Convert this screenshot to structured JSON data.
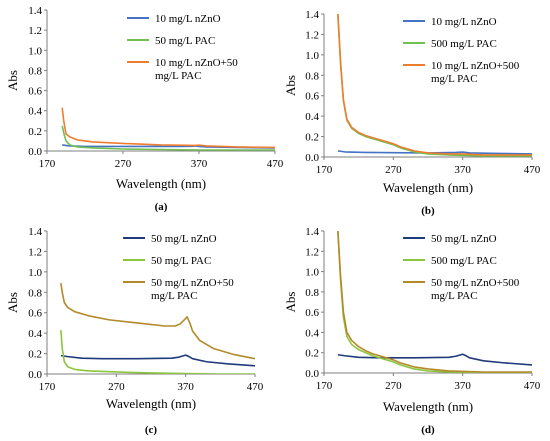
{
  "chart_data": [
    {
      "type": "line",
      "panel_label": "(a)",
      "xlabel": "Wavelength (nm)",
      "ylabel": "Abs",
      "xlim": [
        170,
        470
      ],
      "ylim": [
        0,
        1.4
      ],
      "xticks": [
        170,
        270,
        370,
        470
      ],
      "yticks": [
        0.0,
        0.2,
        0.4,
        0.6,
        0.8,
        1.0,
        1.2,
        1.4
      ],
      "legend_position": "top-right",
      "series": [
        {
          "name": "10 mg/L nZnO",
          "color": "#4472c4",
          "x": [
            190,
            195,
            200,
            220,
            260,
            300,
            340,
            360,
            365,
            370,
            380,
            420,
            470
          ],
          "y": [
            0.06,
            0.055,
            0.05,
            0.045,
            0.045,
            0.045,
            0.045,
            0.046,
            0.05,
            0.045,
            0.04,
            0.035,
            0.03
          ]
        },
        {
          "name": "50 mg/L PAC",
          "color": "#70c050",
          "x": [
            190,
            192,
            195,
            200,
            210,
            230,
            270,
            320,
            370,
            420,
            470
          ],
          "y": [
            0.25,
            0.18,
            0.1,
            0.06,
            0.04,
            0.03,
            0.02,
            0.015,
            0.01,
            0.01,
            0.01
          ]
        },
        {
          "name": "10 mg/L nZnO+50 mg/L PAC",
          "color": "#ed7d31",
          "x": [
            190,
            192,
            195,
            200,
            210,
            230,
            270,
            320,
            365,
            370,
            380,
            420,
            470
          ],
          "y": [
            0.43,
            0.3,
            0.17,
            0.14,
            0.11,
            0.09,
            0.075,
            0.06,
            0.055,
            0.058,
            0.05,
            0.04,
            0.035
          ]
        }
      ]
    },
    {
      "type": "line",
      "panel_label": "(b)",
      "xlabel": "Wavelength (nm)",
      "ylabel": "Abs",
      "xlim": [
        170,
        470
      ],
      "ylim": [
        0,
        1.4
      ],
      "xticks": [
        170,
        270,
        370,
        470
      ],
      "yticks": [
        0.0,
        0.2,
        0.4,
        0.6,
        0.8,
        1.0,
        1.2,
        1.4
      ],
      "legend_position": "top-right",
      "series": [
        {
          "name": "10 mg/L nZnO",
          "color": "#4472c4",
          "x": [
            190,
            200,
            230,
            270,
            320,
            360,
            370,
            380,
            420,
            470
          ],
          "y": [
            0.06,
            0.05,
            0.045,
            0.042,
            0.04,
            0.045,
            0.048,
            0.04,
            0.035,
            0.03
          ]
        },
        {
          "name": "500 mg/L PAC",
          "color": "#70c050",
          "x": [
            190,
            194,
            198,
            203,
            210,
            220,
            230,
            240,
            250,
            260,
            270,
            280,
            300,
            320,
            350,
            400,
            470
          ],
          "y": [
            1.4,
            0.9,
            0.55,
            0.36,
            0.28,
            0.23,
            0.2,
            0.18,
            0.16,
            0.14,
            0.12,
            0.09,
            0.05,
            0.03,
            0.02,
            0.01,
            0.01
          ]
        },
        {
          "name": "10 mg/L nZnO+500 mg/L PAC",
          "color": "#ed7d31",
          "x": [
            190,
            194,
            198,
            203,
            210,
            220,
            230,
            240,
            250,
            260,
            270,
            280,
            300,
            320,
            350,
            370,
            400,
            470
          ],
          "y": [
            1.4,
            0.92,
            0.56,
            0.37,
            0.29,
            0.24,
            0.21,
            0.19,
            0.17,
            0.15,
            0.13,
            0.1,
            0.06,
            0.04,
            0.03,
            0.03,
            0.02,
            0.02
          ]
        }
      ]
    },
    {
      "type": "line",
      "panel_label": "(c)",
      "xlabel": "Wavelength (nm)",
      "ylabel": "Abs",
      "xlim": [
        170,
        470
      ],
      "ylim": [
        0,
        1.4
      ],
      "xticks": [
        170,
        270,
        370,
        470
      ],
      "yticks": [
        0.0,
        0.2,
        0.4,
        0.6,
        0.8,
        1.0,
        1.2,
        1.4
      ],
      "legend_position": "top-right",
      "series": [
        {
          "name": "50 mg/L nZnO",
          "color": "#1f3a7a",
          "x": [
            190,
            200,
            220,
            250,
            300,
            350,
            360,
            365,
            370,
            375,
            380,
            400,
            430,
            470
          ],
          "y": [
            0.18,
            0.17,
            0.155,
            0.15,
            0.15,
            0.155,
            0.165,
            0.175,
            0.185,
            0.17,
            0.15,
            0.12,
            0.1,
            0.08
          ]
        },
        {
          "name": "50 mg/L PAC",
          "color": "#8cc63f",
          "x": [
            190,
            192,
            195,
            200,
            210,
            230,
            270,
            320,
            370,
            420,
            470
          ],
          "y": [
            0.43,
            0.25,
            0.12,
            0.07,
            0.045,
            0.03,
            0.02,
            0.01,
            0.005,
            0.0,
            0.0
          ]
        },
        {
          "name": "50 mg/L nZnO+50 mg/L PAC",
          "color": "#b38a2a",
          "x": [
            190,
            192,
            195,
            200,
            210,
            230,
            260,
            300,
            340,
            355,
            362,
            368,
            372,
            376,
            380,
            390,
            410,
            440,
            470
          ],
          "y": [
            0.89,
            0.8,
            0.7,
            0.65,
            0.61,
            0.57,
            0.53,
            0.5,
            0.47,
            0.47,
            0.49,
            0.53,
            0.56,
            0.5,
            0.42,
            0.33,
            0.25,
            0.19,
            0.15
          ]
        }
      ]
    },
    {
      "type": "line",
      "panel_label": "(d)",
      "xlabel": "Wavelength (nm)",
      "ylabel": "Abs",
      "xlim": [
        170,
        470
      ],
      "ylim": [
        0,
        1.4
      ],
      "xticks": [
        170,
        270,
        370,
        470
      ],
      "yticks": [
        0.0,
        0.2,
        0.4,
        0.6,
        0.8,
        1.0,
        1.2,
        1.4
      ],
      "legend_position": "top-right",
      "series": [
        {
          "name": "50 mg/L nZnO",
          "color": "#1f3a7a",
          "x": [
            190,
            200,
            220,
            250,
            300,
            350,
            360,
            365,
            370,
            375,
            380,
            400,
            430,
            470
          ],
          "y": [
            0.18,
            0.17,
            0.155,
            0.15,
            0.15,
            0.155,
            0.165,
            0.175,
            0.185,
            0.17,
            0.15,
            0.12,
            0.1,
            0.08
          ]
        },
        {
          "name": "500 mg/L PAC",
          "color": "#8cc63f",
          "x": [
            190,
            194,
            198,
            203,
            210,
            220,
            230,
            240,
            250,
            260,
            270,
            280,
            300,
            320,
            350,
            400,
            470
          ],
          "y": [
            1.4,
            0.9,
            0.55,
            0.36,
            0.28,
            0.23,
            0.2,
            0.17,
            0.15,
            0.13,
            0.11,
            0.08,
            0.04,
            0.02,
            0.01,
            0.005,
            0.0
          ]
        },
        {
          "name": "50 mg/L nZnO+500 mg/L PAC",
          "color": "#b38a2a",
          "x": [
            190,
            194,
            198,
            203,
            210,
            220,
            230,
            240,
            250,
            260,
            270,
            280,
            300,
            320,
            350,
            400,
            470
          ],
          "y": [
            1.4,
            0.95,
            0.6,
            0.4,
            0.32,
            0.26,
            0.22,
            0.19,
            0.17,
            0.15,
            0.13,
            0.1,
            0.06,
            0.04,
            0.02,
            0.01,
            0.01
          ]
        }
      ]
    }
  ]
}
